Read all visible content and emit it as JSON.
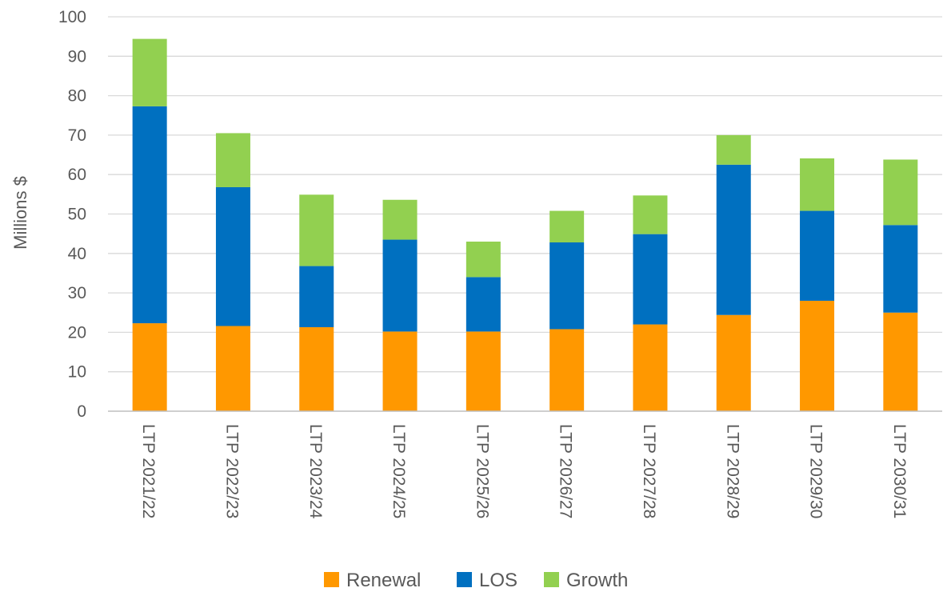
{
  "chart_data": {
    "type": "bar",
    "stacked": true,
    "categories": [
      "LTP 2021/22",
      "LTP 2022/23",
      "LTP 2023/24",
      "LTP 2024/25",
      "LTP 2025/26",
      "LTP 2026/27",
      "LTP 2027/28",
      "LTP 2028/29",
      "LTP 2029/30",
      "LTP 2030/31"
    ],
    "series": [
      {
        "name": "Renewal",
        "color": "#ff9800",
        "values": [
          22.3,
          21.6,
          21.3,
          20.2,
          20.2,
          20.8,
          22.0,
          24.4,
          28.0,
          25.0
        ]
      },
      {
        "name": "LOS",
        "color": "#0070c0",
        "values": [
          55.0,
          35.2,
          15.5,
          23.3,
          13.8,
          22.0,
          22.9,
          38.1,
          22.8,
          22.2
        ]
      },
      {
        "name": "Growth",
        "color": "#92d050",
        "values": [
          17.1,
          13.7,
          18.1,
          10.1,
          9.0,
          8.0,
          9.8,
          7.5,
          13.3,
          16.6
        ]
      }
    ],
    "ylabel": "Millions $",
    "xlabel": "",
    "ylim": [
      0,
      100
    ],
    "yticks": [
      0,
      10,
      20,
      30,
      40,
      50,
      60,
      70,
      80,
      90,
      100
    ],
    "grid": true,
    "legend_position": "bottom"
  }
}
